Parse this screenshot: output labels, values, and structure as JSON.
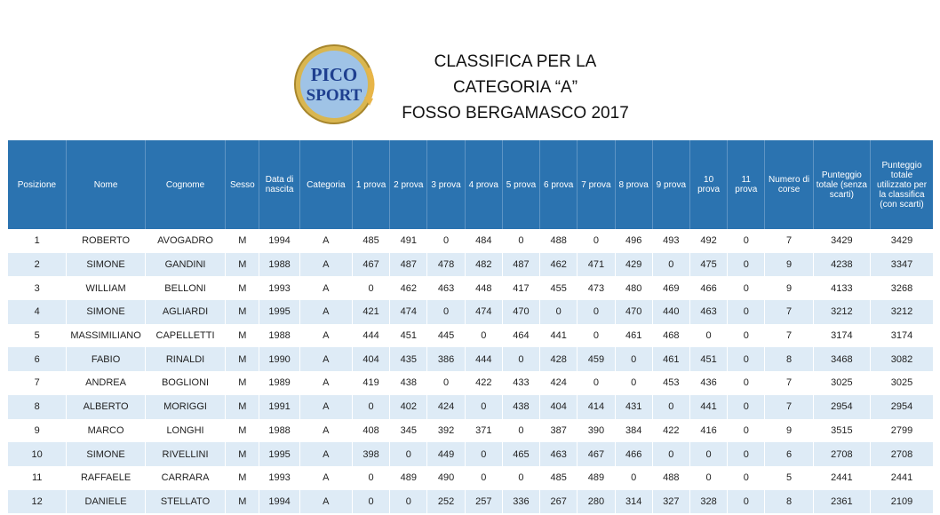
{
  "logo": {
    "name": "PICO SPORT",
    "line1": "PICO",
    "line2": "SPORT"
  },
  "title": {
    "line1": "CLASSIFICA PER LA",
    "line2": "CATEGORIA “A”",
    "line3": "FOSSO BERGAMASCO 2017"
  },
  "table": {
    "headers": [
      "Posizione",
      "Nome",
      "Cognome",
      "Sesso",
      "Data di nascita",
      "Categoria",
      "1 prova",
      "2 prova",
      "3 prova",
      "4 prova",
      "5 prova",
      "6 prova",
      "7 prova",
      "8 prova",
      "9 prova",
      "10 prova",
      "11 prova",
      "Numero di corse",
      "Punteggio totale (senza scarti)",
      "Punteggio totale utilizzato per la classifica (con scarti)"
    ],
    "rows": [
      [
        "1",
        "ROBERTO",
        "AVOGADRO",
        "M",
        "1994",
        "A",
        "485",
        "491",
        "0",
        "484",
        "0",
        "488",
        "0",
        "496",
        "493",
        "492",
        "0",
        "7",
        "3429",
        "3429"
      ],
      [
        "2",
        "SIMONE",
        "GANDINI",
        "M",
        "1988",
        "A",
        "467",
        "487",
        "478",
        "482",
        "487",
        "462",
        "471",
        "429",
        "0",
        "475",
        "0",
        "9",
        "4238",
        "3347"
      ],
      [
        "3",
        "WILLIAM",
        "BELLONI",
        "M",
        "1993",
        "A",
        "0",
        "462",
        "463",
        "448",
        "417",
        "455",
        "473",
        "480",
        "469",
        "466",
        "0",
        "9",
        "4133",
        "3268"
      ],
      [
        "4",
        "SIMONE",
        "AGLIARDI",
        "M",
        "1995",
        "A",
        "421",
        "474",
        "0",
        "474",
        "470",
        "0",
        "0",
        "470",
        "440",
        "463",
        "0",
        "7",
        "3212",
        "3212"
      ],
      [
        "5",
        "MASSIMILIANO",
        "CAPELLETTI",
        "M",
        "1988",
        "A",
        "444",
        "451",
        "445",
        "0",
        "464",
        "441",
        "0",
        "461",
        "468",
        "0",
        "0",
        "7",
        "3174",
        "3174"
      ],
      [
        "6",
        "FABIO",
        "RINALDI",
        "M",
        "1990",
        "A",
        "404",
        "435",
        "386",
        "444",
        "0",
        "428",
        "459",
        "0",
        "461",
        "451",
        "0",
        "8",
        "3468",
        "3082"
      ],
      [
        "7",
        "ANDREA",
        "BOGLIONI",
        "M",
        "1989",
        "A",
        "419",
        "438",
        "0",
        "422",
        "433",
        "424",
        "0",
        "0",
        "453",
        "436",
        "0",
        "7",
        "3025",
        "3025"
      ],
      [
        "8",
        "ALBERTO",
        "MORIGGI",
        "M",
        "1991",
        "A",
        "0",
        "402",
        "424",
        "0",
        "438",
        "404",
        "414",
        "431",
        "0",
        "441",
        "0",
        "7",
        "2954",
        "2954"
      ],
      [
        "9",
        "MARCO",
        "LONGHI",
        "M",
        "1988",
        "A",
        "408",
        "345",
        "392",
        "371",
        "0",
        "387",
        "390",
        "384",
        "422",
        "416",
        "0",
        "9",
        "3515",
        "2799"
      ],
      [
        "10",
        "SIMONE",
        "RIVELLINI",
        "M",
        "1995",
        "A",
        "398",
        "0",
        "449",
        "0",
        "465",
        "463",
        "467",
        "466",
        "0",
        "0",
        "0",
        "6",
        "2708",
        "2708"
      ],
      [
        "11",
        "RAFFAELE",
        "CARRARA",
        "M",
        "1993",
        "A",
        "0",
        "489",
        "490",
        "0",
        "0",
        "485",
        "489",
        "0",
        "488",
        "0",
        "0",
        "5",
        "2441",
        "2441"
      ],
      [
        "12",
        "DANIELE",
        "STELLATO",
        "M",
        "1994",
        "A",
        "0",
        "0",
        "252",
        "257",
        "336",
        "267",
        "280",
        "314",
        "327",
        "328",
        "0",
        "8",
        "2361",
        "2109"
      ]
    ]
  }
}
